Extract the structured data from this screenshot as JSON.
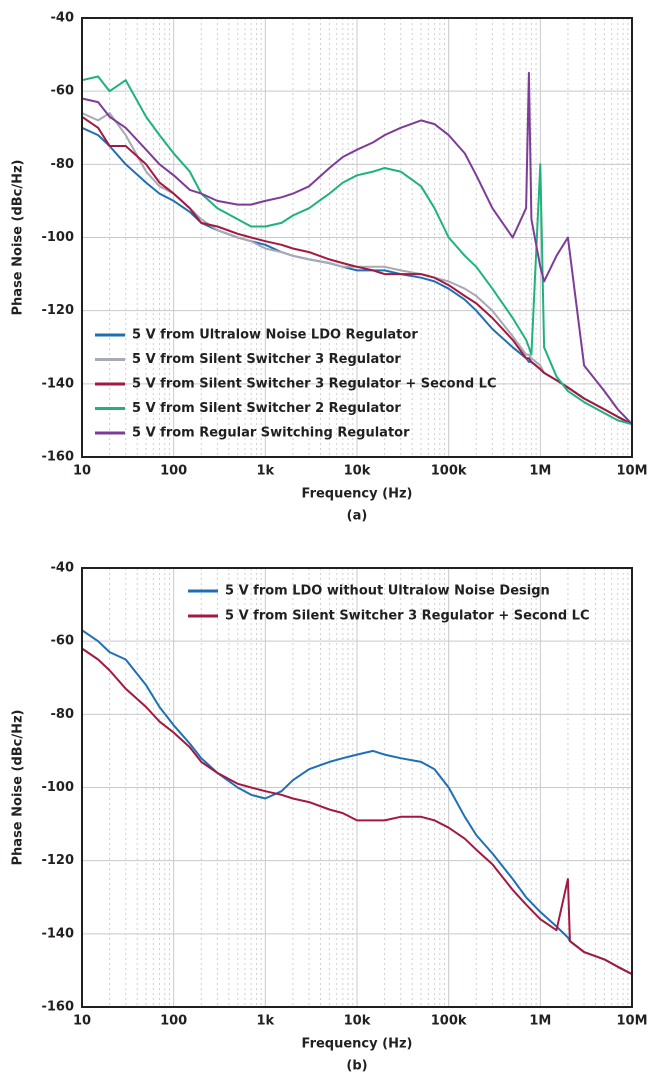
{
  "chart_data": [
    {
      "type": "line",
      "log_x": true,
      "grid": true,
      "minor_grid": true,
      "legend": "lower left",
      "xlabel": "Frequency (Hz)",
      "ylabel": "Phase Noise (dBc/Hz)",
      "caption": "(a)",
      "xlim": [
        10,
        10000000
      ],
      "ylim": [
        -160,
        -40
      ],
      "xticks": [
        {
          "value": 10,
          "label": "10"
        },
        {
          "value": 100,
          "label": "100"
        },
        {
          "value": 1000,
          "label": "1k"
        },
        {
          "value": 10000,
          "label": "10k"
        },
        {
          "value": 100000,
          "label": "100k"
        },
        {
          "value": 1000000,
          "label": "1M"
        },
        {
          "value": 10000000,
          "label": "10M"
        }
      ],
      "yticks": [
        -160,
        -140,
        -120,
        -100,
        -80,
        -60,
        -40
      ],
      "x": [
        10,
        15,
        20,
        30,
        50,
        70,
        100,
        150,
        200,
        300,
        500,
        700,
        1000,
        1500,
        2000,
        3000,
        5000,
        7000,
        10000,
        15000,
        20000,
        30000,
        50000,
        70000,
        100000,
        150000,
        200000,
        300000,
        500000,
        700000,
        750000,
        800000,
        1000000,
        1100000,
        1500000,
        2000000,
        3000000,
        5000000,
        7000000,
        10000000
      ],
      "series": [
        {
          "name": "5 V from Ultralow Noise LDO Regulator",
          "color": "#1f6fb5",
          "values": [
            -70,
            -72,
            -75,
            -80,
            -85,
            -88,
            -90,
            -93,
            -96,
            -98,
            -100,
            -101,
            -102,
            -104,
            -105,
            -106,
            -107,
            -108,
            -109,
            -109,
            -109,
            -110,
            -111,
            -112,
            -114,
            -117,
            -120,
            -125,
            -130,
            -133,
            -134,
            -134,
            -136,
            -137,
            -139,
            -141,
            -144,
            -147,
            -149,
            -151
          ]
        },
        {
          "name": "5 V from Silent Switcher 3 Regulator",
          "color": "#a7a9b4",
          "values": [
            -66,
            -68,
            -66,
            -72,
            -82,
            -86,
            -88,
            -92,
            -95,
            -98,
            -100,
            -101,
            -103,
            -104,
            -105,
            -106,
            -107,
            -108,
            -108,
            -108,
            -108,
            -109,
            -110,
            -111,
            -112,
            -114,
            -116,
            -120,
            -127,
            -132,
            -132,
            -133,
            -135,
            -137,
            -139,
            -141,
            -144,
            -147,
            -149,
            -151
          ]
        },
        {
          "name": "5 V from Silent Switcher 3 Regulator + Second LC",
          "color": "#a3193f",
          "values": [
            -67,
            -70,
            -75,
            -75,
            -80,
            -85,
            -88,
            -92,
            -96,
            -97,
            -99,
            -100,
            -101,
            -102,
            -103,
            -104,
            -106,
            -107,
            -108,
            -109,
            -110,
            -110,
            -110,
            -111,
            -113,
            -116,
            -118,
            -122,
            -128,
            -133,
            -133,
            -134,
            -136,
            -137,
            -139,
            -141,
            -144,
            -147,
            -149,
            -151
          ]
        },
        {
          "name": "5 V from Silent Switcher 2 Regulator",
          "color": "#1db37a",
          "values": [
            -57,
            -56,
            -60,
            -57,
            -67,
            -72,
            -77,
            -82,
            -88,
            -92,
            -95,
            -97,
            -97,
            -96,
            -94,
            -92,
            -88,
            -85,
            -83,
            -82,
            -81,
            -82,
            -86,
            -92,
            -100,
            -105,
            -108,
            -114,
            -122,
            -128,
            -130,
            -132,
            -80,
            -130,
            -138,
            -142,
            -145,
            -148,
            -150,
            -151
          ]
        },
        {
          "name": "5 V from Regular Switching Regulator",
          "color": "#7d3c98",
          "values": [
            -62,
            -63,
            -67,
            -70,
            -76,
            -80,
            -83,
            -87,
            -88,
            -90,
            -91,
            -91,
            -90,
            -89,
            -88,
            -86,
            -81,
            -78,
            -76,
            -74,
            -72,
            -70,
            -68,
            -69,
            -72,
            -77,
            -83,
            -92,
            -100,
            -92,
            -55,
            -95,
            -108,
            -112,
            -105,
            -100,
            -135,
            -142,
            -147,
            -151
          ]
        }
      ]
    },
    {
      "type": "line",
      "log_x": true,
      "grid": true,
      "minor_grid": true,
      "legend": "upper center",
      "xlabel": "Frequency (Hz)",
      "ylabel": "Phase Noise (dBc/Hz)",
      "caption": "(b)",
      "xlim": [
        10,
        10000000
      ],
      "ylim": [
        -160,
        -40
      ],
      "xticks": [
        {
          "value": 10,
          "label": "10"
        },
        {
          "value": 100,
          "label": "100"
        },
        {
          "value": 1000,
          "label": "1k"
        },
        {
          "value": 10000,
          "label": "10k"
        },
        {
          "value": 100000,
          "label": "100k"
        },
        {
          "value": 1000000,
          "label": "1M"
        },
        {
          "value": 10000000,
          "label": "10M"
        }
      ],
      "yticks": [
        -160,
        -140,
        -120,
        -100,
        -80,
        -60,
        -40
      ],
      "x": [
        10,
        15,
        20,
        30,
        50,
        70,
        100,
        150,
        200,
        300,
        500,
        700,
        1000,
        1500,
        2000,
        3000,
        5000,
        7000,
        10000,
        15000,
        20000,
        30000,
        50000,
        70000,
        100000,
        150000,
        200000,
        300000,
        500000,
        700000,
        1000000,
        1500000,
        2000000,
        2100000,
        3000000,
        5000000,
        7000000,
        10000000
      ],
      "series": [
        {
          "name": "5 V from LDO without Ultralow Noise Design",
          "color": "#1f6fb5",
          "values": [
            -57,
            -60,
            -63,
            -65,
            -72,
            -78,
            -83,
            -88,
            -92,
            -96,
            -100,
            -102,
            -103,
            -101,
            -98,
            -95,
            -93,
            -92,
            -91,
            -90,
            -91,
            -92,
            -93,
            -95,
            -100,
            -108,
            -113,
            -118,
            -125,
            -130,
            -134,
            -138,
            -141,
            -142,
            -145,
            -147,
            -149,
            -151
          ]
        },
        {
          "name": "5 V from Silent Switcher 3 Regulator + Second LC",
          "color": "#a3193f",
          "values": [
            -62,
            -65,
            -68,
            -73,
            -78,
            -82,
            -85,
            -89,
            -93,
            -96,
            -99,
            -100,
            -101,
            -102,
            -103,
            -104,
            -106,
            -107,
            -109,
            -109,
            -109,
            -108,
            -108,
            -109,
            -111,
            -114,
            -117,
            -121,
            -128,
            -132,
            -136,
            -139,
            -125,
            -142,
            -145,
            -147,
            -149,
            -151
          ]
        }
      ]
    }
  ]
}
